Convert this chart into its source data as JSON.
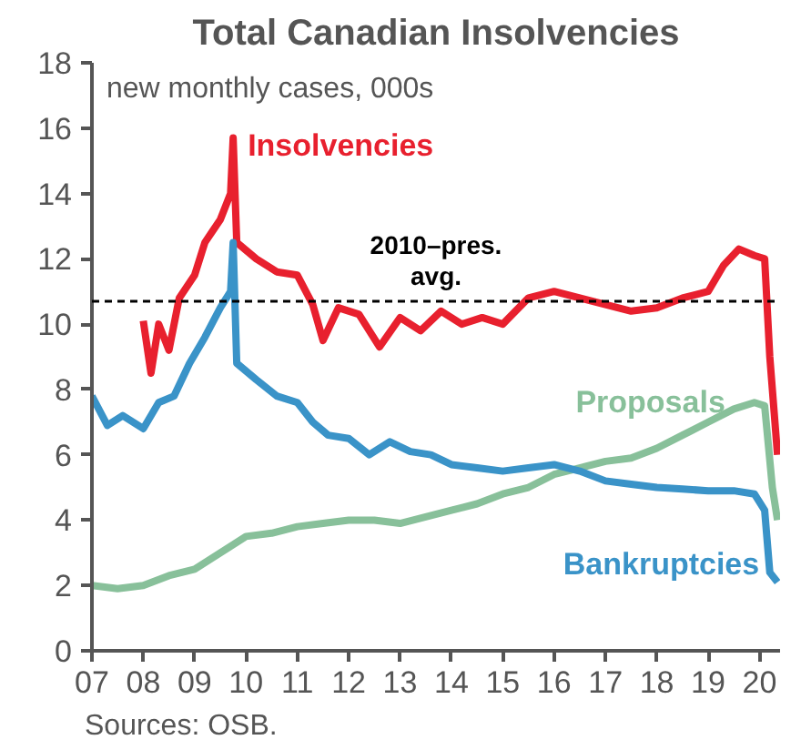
{
  "chart_data": {
    "type": "line",
    "title": "Total Canadian Insolvencies",
    "subtitle": "new monthly cases, 000s",
    "xlim": [
      2007,
      2020.4
    ],
    "xticks": [
      {
        "value": 2007,
        "label": "07"
      },
      {
        "value": 2008,
        "label": "08"
      },
      {
        "value": 2009,
        "label": "09"
      },
      {
        "value": 2010,
        "label": "10"
      },
      {
        "value": 2011,
        "label": "11"
      },
      {
        "value": 2012,
        "label": "12"
      },
      {
        "value": 2013,
        "label": "13"
      },
      {
        "value": 2014,
        "label": "14"
      },
      {
        "value": 2015,
        "label": "15"
      },
      {
        "value": 2016,
        "label": "16"
      },
      {
        "value": 2017,
        "label": "17"
      },
      {
        "value": 2018,
        "label": "18"
      },
      {
        "value": 2019,
        "label": "19"
      },
      {
        "value": 2020,
        "label": "20"
      }
    ],
    "ylim": [
      0,
      18
    ],
    "yticks": [
      0,
      2,
      4,
      6,
      8,
      10,
      12,
      14,
      16,
      18
    ],
    "grid": false,
    "series": [
      {
        "name": "Insolvencies",
        "color": "#e8202e",
        "x": [
          2008.0,
          2008.15,
          2008.3,
          2008.5,
          2008.7,
          2009.0,
          2009.2,
          2009.5,
          2009.7,
          2009.75,
          2009.82,
          2010.2,
          2010.6,
          2011.0,
          2011.3,
          2011.5,
          2011.8,
          2012.2,
          2012.6,
          2013.0,
          2013.4,
          2013.8,
          2014.2,
          2014.6,
          2015.0,
          2015.5,
          2016.0,
          2016.5,
          2017.0,
          2017.5,
          2018.0,
          2018.5,
          2019.0,
          2019.3,
          2019.6,
          2019.9,
          2020.1,
          2020.2,
          2020.35
        ],
        "values": [
          10.1,
          8.5,
          10.0,
          9.2,
          10.8,
          11.5,
          12.5,
          13.2,
          14.0,
          15.7,
          12.5,
          12.0,
          11.6,
          11.5,
          10.6,
          9.5,
          10.5,
          10.3,
          9.3,
          10.2,
          9.8,
          10.4,
          10.0,
          10.2,
          10.0,
          10.8,
          11.0,
          10.8,
          10.6,
          10.4,
          10.5,
          10.8,
          11.0,
          11.8,
          12.3,
          12.1,
          12.0,
          9.0,
          6.0
        ]
      },
      {
        "name": "Proposals",
        "color": "#88c09a",
        "x": [
          2007.0,
          2007.5,
          2008.0,
          2008.5,
          2009.0,
          2009.5,
          2010.0,
          2010.5,
          2011.0,
          2011.5,
          2012.0,
          2012.5,
          2013.0,
          2013.5,
          2014.0,
          2014.5,
          2015.0,
          2015.5,
          2016.0,
          2016.5,
          2017.0,
          2017.5,
          2018.0,
          2018.5,
          2019.0,
          2019.5,
          2019.9,
          2020.1,
          2020.25,
          2020.35
        ],
        "values": [
          2.0,
          1.9,
          2.0,
          2.3,
          2.5,
          3.0,
          3.5,
          3.6,
          3.8,
          3.9,
          4.0,
          4.0,
          3.9,
          4.1,
          4.3,
          4.5,
          4.8,
          5.0,
          5.4,
          5.6,
          5.8,
          5.9,
          6.2,
          6.6,
          7.0,
          7.4,
          7.6,
          7.5,
          5.0,
          4.0
        ]
      },
      {
        "name": "Bankruptcies",
        "color": "#3a93c8",
        "x": [
          2007.0,
          2007.3,
          2007.6,
          2008.0,
          2008.3,
          2008.6,
          2008.9,
          2009.2,
          2009.5,
          2009.7,
          2009.75,
          2009.82,
          2010.2,
          2010.6,
          2011.0,
          2011.3,
          2011.6,
          2012.0,
          2012.4,
          2012.8,
          2013.2,
          2013.6,
          2014.0,
          2014.5,
          2015.0,
          2015.5,
          2016.0,
          2016.5,
          2017.0,
          2017.5,
          2018.0,
          2018.5,
          2019.0,
          2019.5,
          2019.9,
          2020.1,
          2020.2,
          2020.35
        ],
        "values": [
          7.8,
          6.9,
          7.2,
          6.8,
          7.6,
          7.8,
          8.8,
          9.6,
          10.5,
          11.0,
          12.5,
          8.8,
          8.3,
          7.8,
          7.6,
          7.0,
          6.6,
          6.5,
          6.0,
          6.4,
          6.1,
          6.0,
          5.7,
          5.6,
          5.5,
          5.6,
          5.7,
          5.5,
          5.2,
          5.1,
          5.0,
          4.95,
          4.9,
          4.9,
          4.8,
          4.3,
          2.4,
          2.1
        ]
      }
    ],
    "ref_lines": [
      {
        "axis": "y",
        "value": 10.7,
        "label": "2010–pres. avg.",
        "color": "#000000",
        "line_style": "dashed"
      }
    ],
    "annotations": [
      "Sources: OSB."
    ]
  }
}
